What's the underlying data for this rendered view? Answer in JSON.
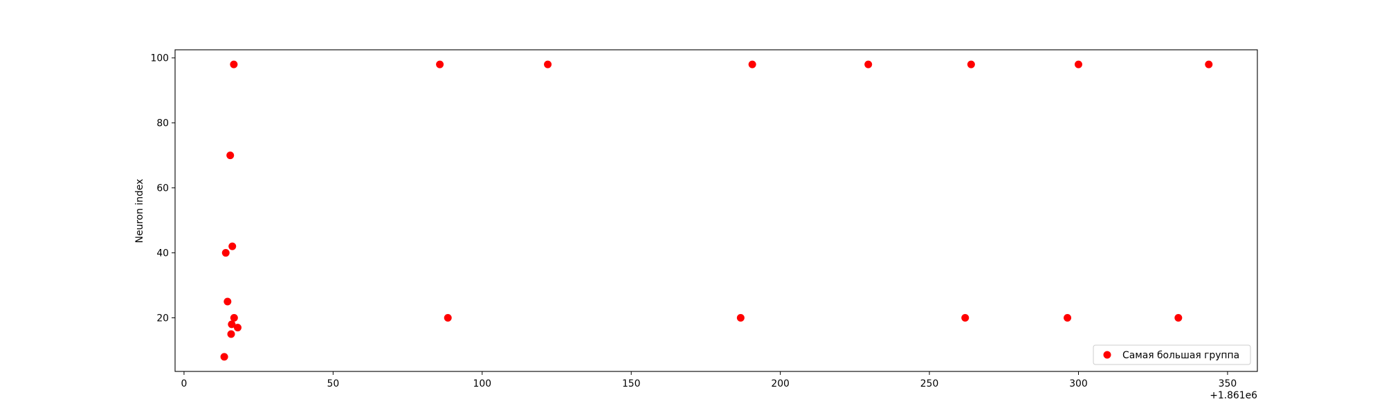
{
  "chart_data": {
    "type": "scatter",
    "title": "",
    "xlabel": "",
    "ylabel": "Neuron index",
    "x_offset_label": "+1.861e6",
    "xlim": [
      -3,
      360
    ],
    "ylim": [
      3.5,
      102.5
    ],
    "xticks": [
      0,
      50,
      100,
      150,
      200,
      250,
      300,
      350
    ],
    "yticks": [
      20,
      40,
      60,
      80,
      100
    ],
    "grid": false,
    "legend_position": "lower right",
    "color": "#ff0000",
    "series": [
      {
        "name": "Самая большая группа",
        "points": [
          {
            "x": 13.5,
            "y": 8
          },
          {
            "x": 14.0,
            "y": 40
          },
          {
            "x": 14.6,
            "y": 25
          },
          {
            "x": 15.5,
            "y": 70
          },
          {
            "x": 15.8,
            "y": 15
          },
          {
            "x": 16.0,
            "y": 18
          },
          {
            "x": 16.2,
            "y": 42
          },
          {
            "x": 16.7,
            "y": 98
          },
          {
            "x": 16.8,
            "y": 20
          },
          {
            "x": 18.0,
            "y": 17
          },
          {
            "x": 85.8,
            "y": 98
          },
          {
            "x": 88.5,
            "y": 20
          },
          {
            "x": 122.0,
            "y": 98
          },
          {
            "x": 186.7,
            "y": 20
          },
          {
            "x": 190.6,
            "y": 98
          },
          {
            "x": 229.5,
            "y": 98
          },
          {
            "x": 262.0,
            "y": 20
          },
          {
            "x": 264.0,
            "y": 98
          },
          {
            "x": 296.3,
            "y": 20
          },
          {
            "x": 300.0,
            "y": 98
          },
          {
            "x": 333.5,
            "y": 20
          },
          {
            "x": 343.7,
            "y": 98
          }
        ]
      }
    ]
  }
}
